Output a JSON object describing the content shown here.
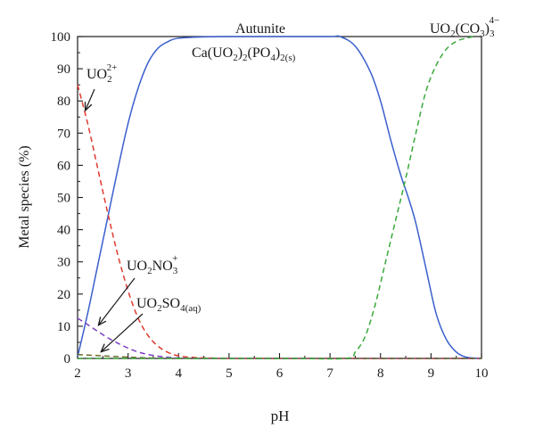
{
  "chart_data": {
    "type": "line",
    "xlabel": "pH",
    "ylabel": "Metal species (%)",
    "xlim": [
      2,
      10
    ],
    "ylim": [
      0,
      100
    ],
    "x_ticks": [
      2,
      3,
      4,
      5,
      6,
      7,
      8,
      9,
      10
    ],
    "y_ticks": [
      0,
      10,
      20,
      30,
      40,
      50,
      60,
      70,
      80,
      90,
      100
    ],
    "grid": false,
    "series": [
      {
        "name": "Autunite Ca(UO2)2(PO4)2(s)",
        "color": "#3a5fcd",
        "style": "solid",
        "x": [
          2.0,
          2.2,
          2.4,
          2.6,
          2.8,
          3.0,
          3.2,
          3.4,
          3.6,
          3.8,
          4.0,
          4.5,
          5.0,
          6.0,
          7.0,
          7.2,
          7.5,
          7.8,
          8.0,
          8.2,
          8.4,
          8.55,
          8.7,
          8.9,
          9.1,
          9.3,
          9.5,
          9.7,
          10.0
        ],
        "y": [
          0.5,
          14,
          29,
          44,
          59,
          73,
          84,
          92,
          96.5,
          98.5,
          99.5,
          99.9,
          100,
          100,
          100,
          100,
          97,
          89,
          80,
          68,
          57,
          50,
          42,
          28,
          14,
          6,
          2,
          0.4,
          0
        ]
      },
      {
        "name": "UO2 2+",
        "color": "#e03a2e",
        "style": "dashed",
        "x": [
          2.0,
          2.2,
          2.4,
          2.6,
          2.8,
          3.0,
          3.2,
          3.4,
          3.6,
          3.8,
          4.0,
          4.3,
          4.7,
          5.0,
          6.0,
          7.0,
          8.0,
          9.0,
          10.0
        ],
        "y": [
          85,
          73,
          59,
          45,
          32,
          21,
          12.5,
          7,
          3.7,
          1.8,
          0.8,
          0.3,
          0.1,
          0,
          0,
          0,
          0,
          0,
          0
        ]
      },
      {
        "name": "UO2NO3 +",
        "color": "#7b3fc4",
        "style": "dashed",
        "x": [
          2.0,
          2.2,
          2.4,
          2.6,
          2.8,
          3.0,
          3.2,
          3.4,
          3.6,
          3.8,
          4.0,
          4.5,
          5.0,
          6.0,
          8.0,
          10.0
        ],
        "y": [
          12.5,
          10.5,
          8.4,
          6.4,
          4.7,
          3.2,
          2.0,
          1.2,
          0.7,
          0.35,
          0.15,
          0.05,
          0,
          0,
          0,
          0
        ]
      },
      {
        "name": "UO2SO4(aq)",
        "color": "#6b6b2f",
        "style": "dashed",
        "x": [
          2.0,
          2.5,
          3.0,
          3.5,
          4.0,
          5.0,
          10.0
        ],
        "y": [
          1.2,
          0.8,
          0.4,
          0.15,
          0.05,
          0,
          0
        ]
      },
      {
        "name": "UO2(CO3)3 4-",
        "color": "#3aa83a",
        "style": "dashed",
        "x": [
          2.0,
          6.0,
          7.3,
          7.5,
          7.7,
          7.9,
          8.1,
          8.3,
          8.5,
          8.7,
          8.9,
          9.1,
          9.3,
          9.5,
          9.7,
          9.85
        ],
        "y": [
          0,
          0,
          0,
          2,
          7,
          17,
          30,
          43,
          56,
          70,
          83,
          91,
          96,
          98.5,
          99.5,
          100
        ]
      }
    ],
    "labels": {
      "autunite_top": "Autunite",
      "autunite_formula": {
        "ca": "Ca(UO",
        "s1": "2",
        "m1": ")",
        "s2": "2",
        "m2": "(PO",
        "s3": "4",
        "m3": ")",
        "s4": "2(s)"
      },
      "uo2": {
        "base": "UO",
        "sub": "2",
        "sup": "2+"
      },
      "uo2no3": {
        "a": "UO",
        "s1": "2",
        "b": "NO",
        "s2": "3",
        "sup": "+"
      },
      "uo2so4": {
        "a": "UO",
        "s1": "2",
        "b": "SO",
        "s2": "4(aq)"
      },
      "carbonate": {
        "a": "UO",
        "s1": "2",
        "b": "(CO",
        "s2": "3",
        "c": ")",
        "s3": "3",
        "sup": "4−"
      }
    }
  }
}
